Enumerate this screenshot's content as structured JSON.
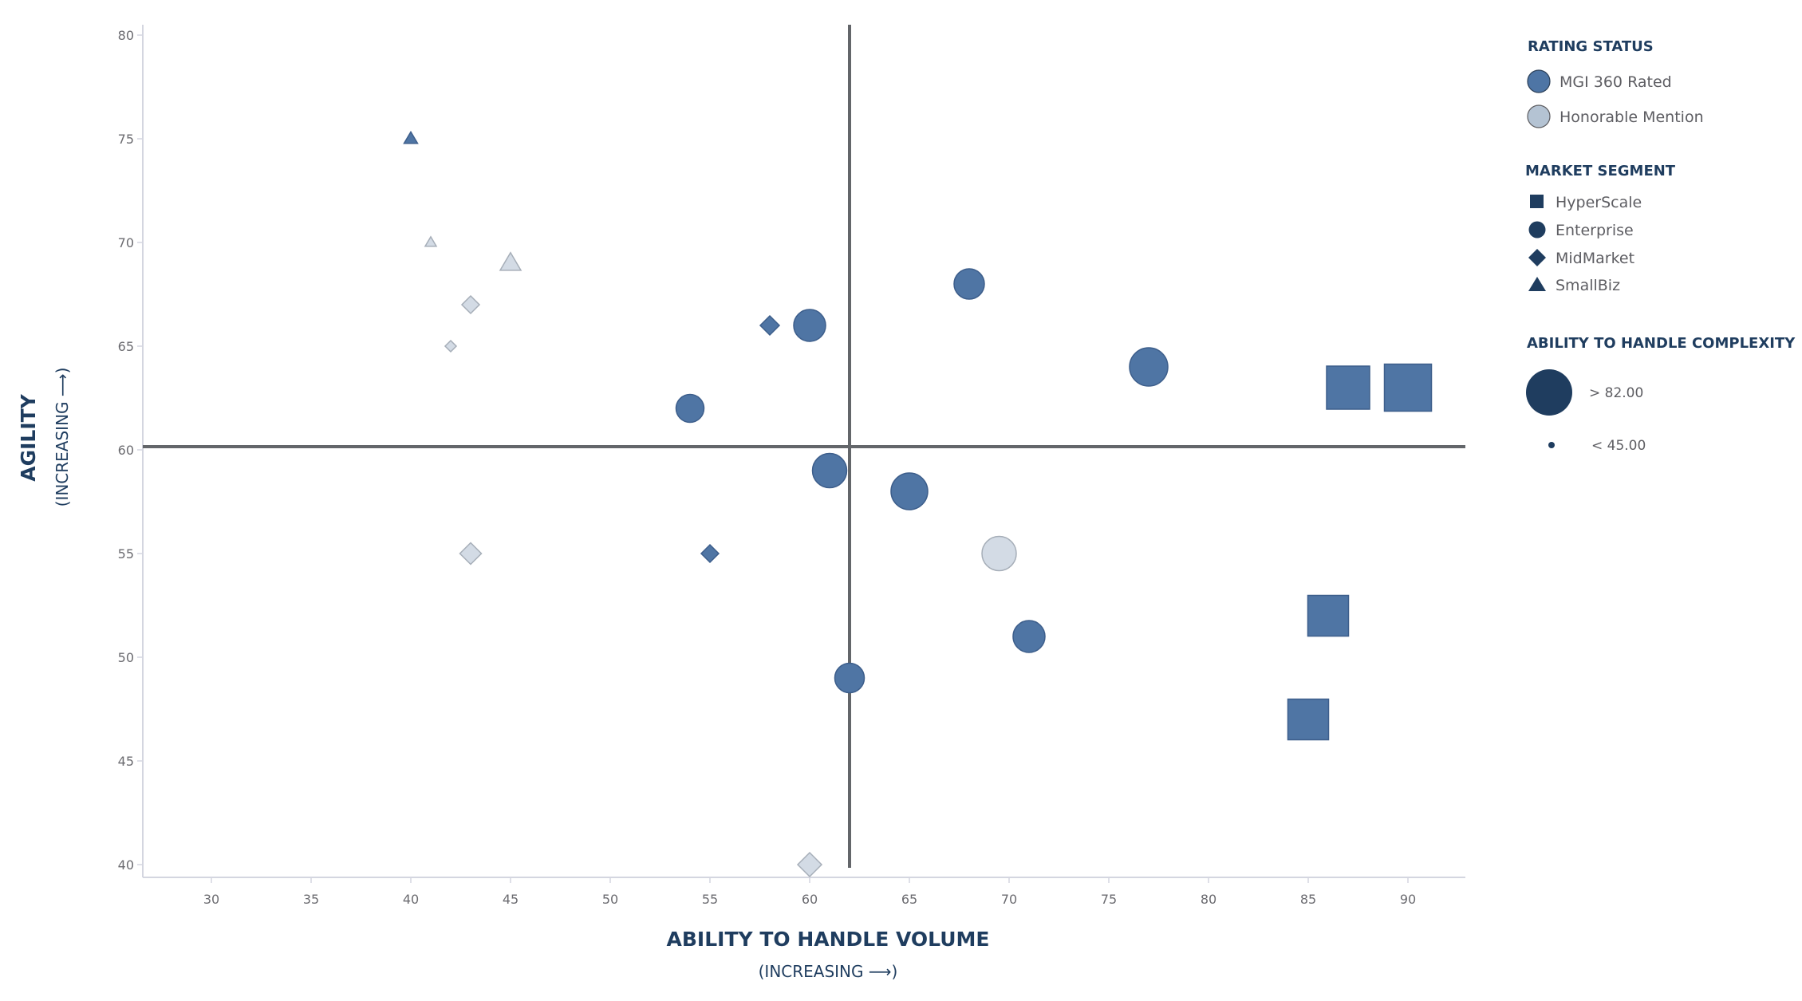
{
  "chart_data": {
    "type": "scatter",
    "title": "",
    "xlabel": "ABILITY TO HANDLE VOLUME",
    "xlabel_sub": "(INCREASING ⟶)",
    "ylabel": "AGILITY",
    "ylabel_sub": "(INCREASING ⟶)",
    "xlim": [
      26.6,
      92.9
    ],
    "ylim": [
      39.5,
      80.5
    ],
    "x_ticks": [
      30,
      35,
      40,
      45,
      50,
      55,
      60,
      65,
      70,
      75,
      80,
      85,
      90
    ],
    "y_ticks": [
      40,
      45,
      50,
      55,
      60,
      65,
      70,
      75,
      80
    ],
    "grid": false,
    "quadrant_lines": {
      "x": 62,
      "y": 60
    },
    "legend_position": "right",
    "legend": {
      "rating_status": {
        "title": "RATING STATUS",
        "items": [
          {
            "label": "MGI 360 Rated",
            "color": "#4e75a5"
          },
          {
            "label": "Honorable Mention",
            "color": "#b4c3d3"
          }
        ]
      },
      "market_segment": {
        "title": "MARKET SEGMENT",
        "items": [
          {
            "label": "HyperScale",
            "shape": "square"
          },
          {
            "label": "Enterprise",
            "shape": "circle"
          },
          {
            "label": "MidMarket",
            "shape": "diamond"
          },
          {
            "label": "SmallBiz",
            "shape": "triangle"
          }
        ]
      },
      "complexity": {
        "title": "ABILITY TO HANDLE COMPLEXITY",
        "items": [
          {
            "label": "> 82.00",
            "size": "large"
          },
          {
            "label": "< 45.00",
            "size": "small"
          }
        ]
      }
    },
    "series": [
      {
        "name": "MGI 360 Rated",
        "color": "#4f75a4",
        "stroke": "#3d5e8b",
        "points": [
          {
            "x": 40,
            "y": 75,
            "segment": "SmallBiz",
            "size": 17
          },
          {
            "x": 58,
            "y": 66,
            "segment": "MidMarket",
            "size": 24
          },
          {
            "x": 60,
            "y": 66,
            "segment": "Enterprise",
            "size": 40
          },
          {
            "x": 68,
            "y": 68,
            "segment": "Enterprise",
            "size": 38
          },
          {
            "x": 54,
            "y": 62,
            "segment": "Enterprise",
            "size": 35
          },
          {
            "x": 77,
            "y": 64,
            "segment": "Enterprise",
            "size": 48
          },
          {
            "x": 87,
            "y": 63,
            "segment": "HyperScale",
            "size": 54
          },
          {
            "x": 90,
            "y": 63,
            "segment": "HyperScale",
            "size": 59
          },
          {
            "x": 61,
            "y": 59,
            "segment": "Enterprise",
            "size": 43
          },
          {
            "x": 65,
            "y": 58,
            "segment": "Enterprise",
            "size": 46
          },
          {
            "x": 55,
            "y": 55,
            "segment": "MidMarket",
            "size": 22
          },
          {
            "x": 71,
            "y": 51,
            "segment": "Enterprise",
            "size": 40
          },
          {
            "x": 62,
            "y": 49,
            "segment": "Enterprise",
            "size": 37
          },
          {
            "x": 86,
            "y": 52,
            "segment": "HyperScale",
            "size": 51
          },
          {
            "x": 85,
            "y": 47,
            "segment": "HyperScale",
            "size": 51
          }
        ]
      },
      {
        "name": "Honorable Mention",
        "color": "#d3dbe5",
        "stroke": "#a6aeb8",
        "points": [
          {
            "x": 41,
            "y": 70,
            "segment": "SmallBiz",
            "size": 14
          },
          {
            "x": 45,
            "y": 69,
            "segment": "SmallBiz",
            "size": 26
          },
          {
            "x": 43,
            "y": 67,
            "segment": "MidMarket",
            "size": 22
          },
          {
            "x": 42,
            "y": 65,
            "segment": "MidMarket",
            "size": 14
          },
          {
            "x": 43,
            "y": 55,
            "segment": "MidMarket",
            "size": 27
          },
          {
            "x": 69.5,
            "y": 55,
            "segment": "Enterprise",
            "size": 43
          },
          {
            "x": 60,
            "y": 40,
            "segment": "MidMarket",
            "size": 30
          }
        ]
      }
    ]
  },
  "colors": {
    "axis_line": "#d4d6e0",
    "quadrant_line": "#63666a",
    "legend_dark": "#1f3d5f",
    "tick_text": "#6b6b70"
  }
}
